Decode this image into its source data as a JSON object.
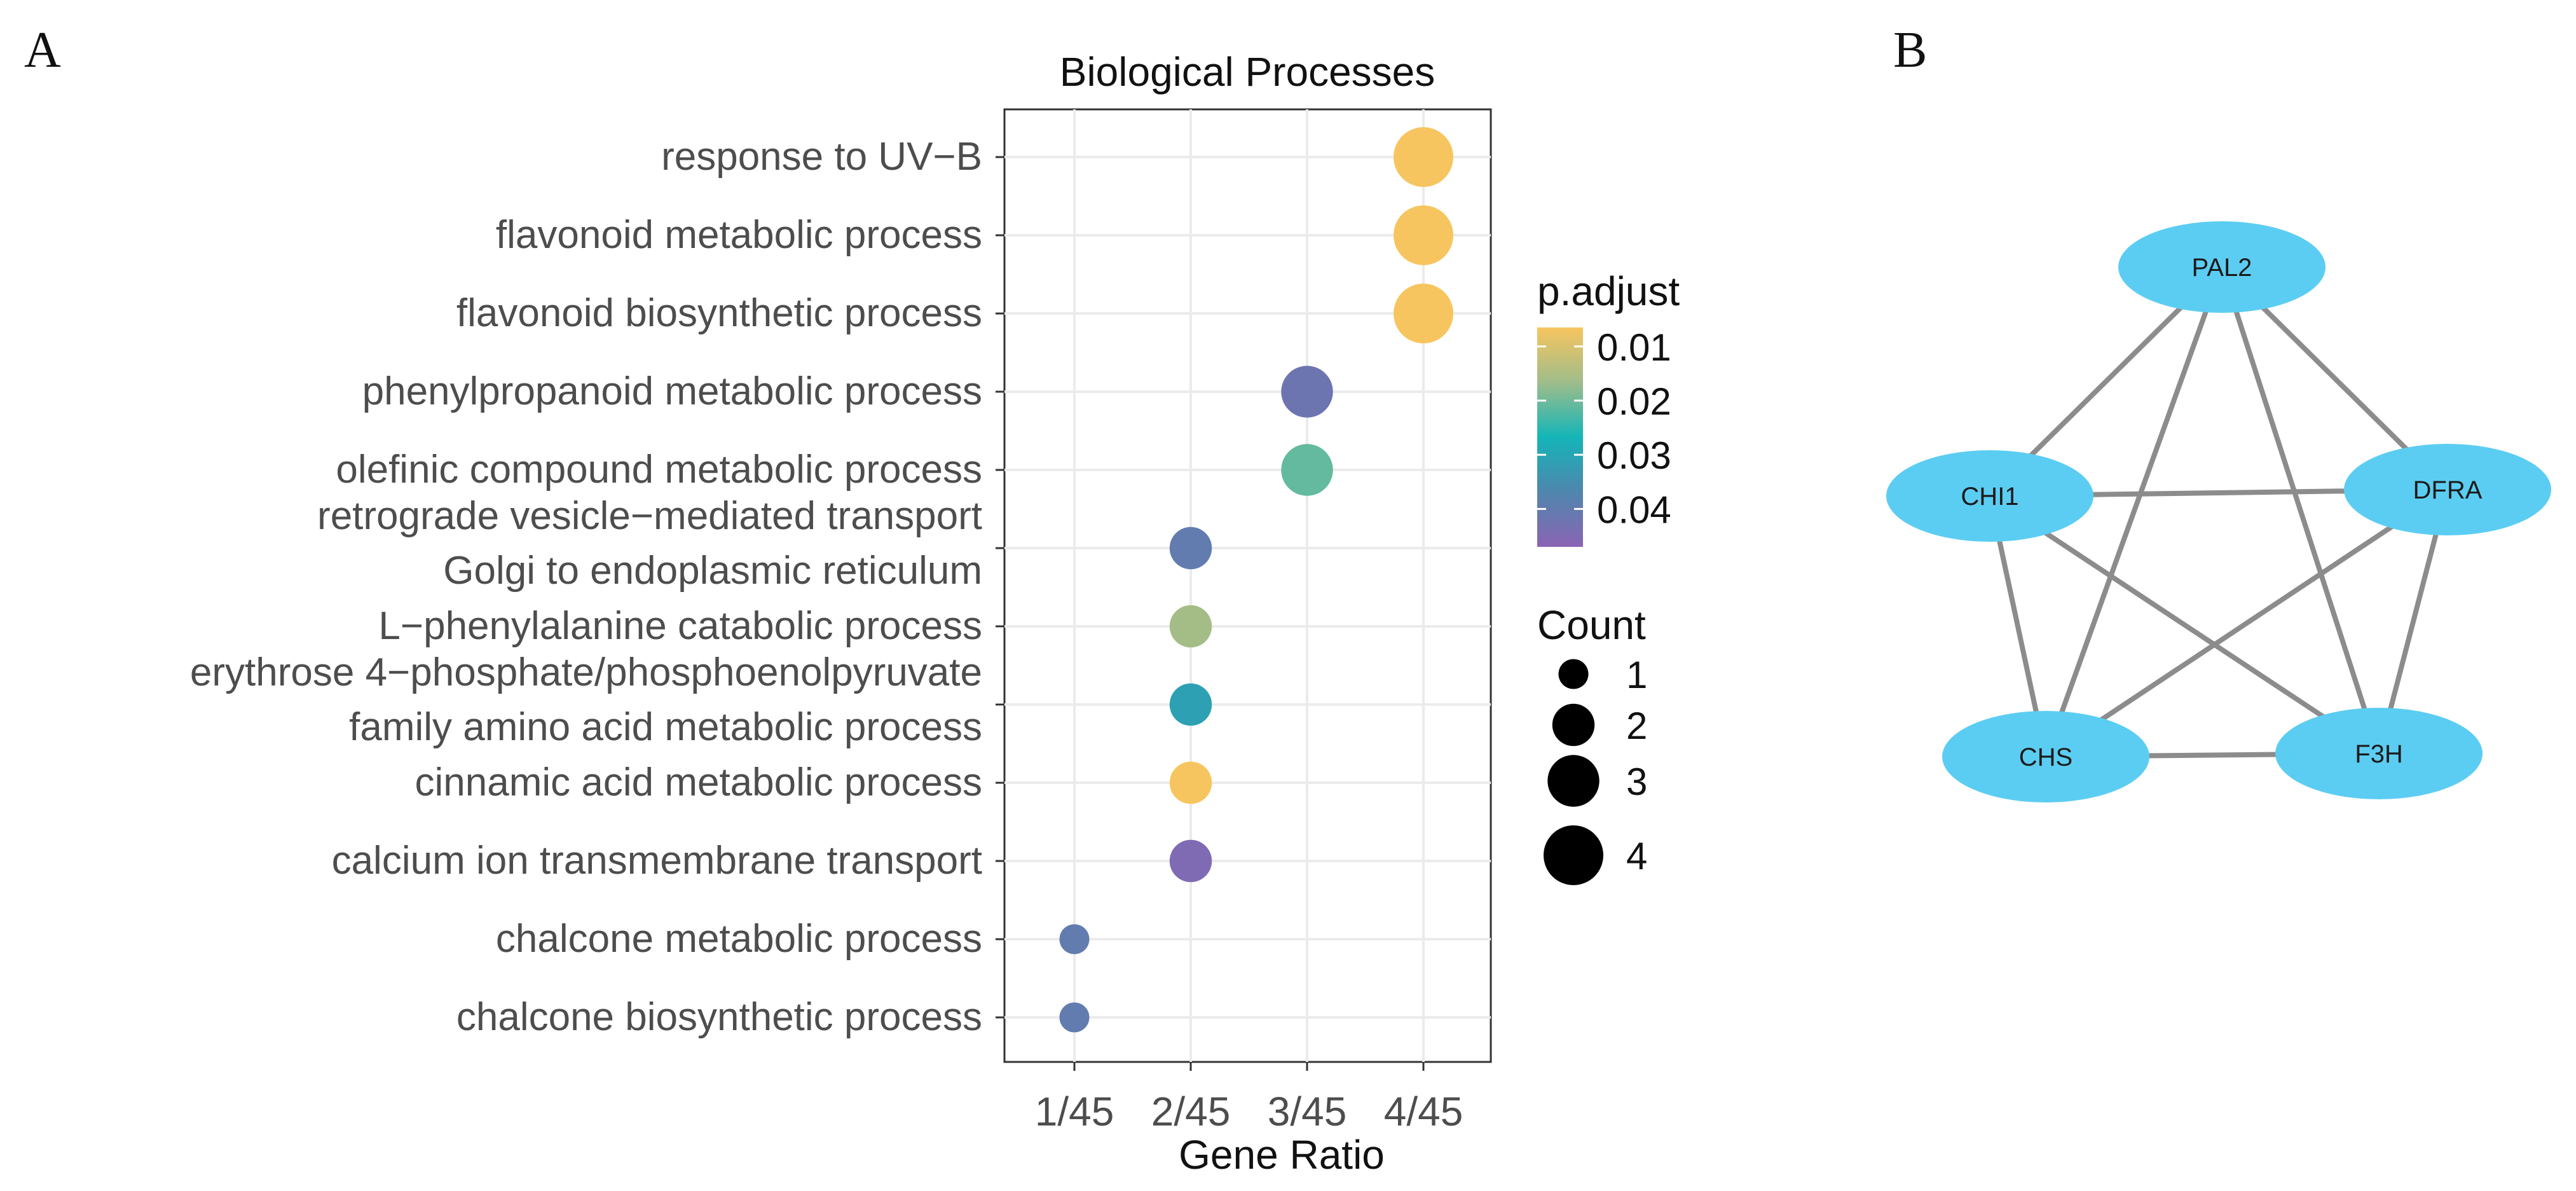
{
  "figure": {
    "panel_a_label": "A",
    "panel_b_label": "B"
  },
  "chart_data": {
    "type": "scatter",
    "title": "Biological Processes",
    "xlabel": "Gene Ratio",
    "ylabel": "",
    "x_categories": [
      "1/45",
      "2/45",
      "3/45",
      "4/45"
    ],
    "terms": [
      {
        "lines": [
          "response to UV−B"
        ],
        "ratio": "4/45",
        "count": 4,
        "p_adjust": 0.0065
      },
      {
        "lines": [
          "flavonoid metabolic process"
        ],
        "ratio": "4/45",
        "count": 4,
        "p_adjust": 0.0065
      },
      {
        "lines": [
          "flavonoid biosynthetic process"
        ],
        "ratio": "4/45",
        "count": 4,
        "p_adjust": 0.0065
      },
      {
        "lines": [
          "phenylpropanoid metabolic process"
        ],
        "ratio": "3/45",
        "count": 3,
        "p_adjust": 0.042
      },
      {
        "lines": [
          "olefinic compound metabolic process"
        ],
        "ratio": "3/45",
        "count": 3,
        "p_adjust": 0.021
      },
      {
        "lines": [
          "retrograde vesicle−mediated transport",
          "Golgi to endoplasmic reticulum"
        ],
        "ratio": "2/45",
        "count": 2,
        "p_adjust": 0.04
      },
      {
        "lines": [
          "L−phenylalanine catabolic process"
        ],
        "ratio": "2/45",
        "count": 2,
        "p_adjust": 0.016
      },
      {
        "lines": [
          "erythrose 4−phosphate/phosphoenolpyruvate",
          "family amino acid metabolic process"
        ],
        "ratio": "2/45",
        "count": 2,
        "p_adjust": 0.031
      },
      {
        "lines": [
          "cinnamic acid metabolic process"
        ],
        "ratio": "2/45",
        "count": 2,
        "p_adjust": 0.0065
      },
      {
        "lines": [
          "calcium ion transmembrane transport"
        ],
        "ratio": "2/45",
        "count": 2,
        "p_adjust": 0.045
      },
      {
        "lines": [
          "chalcone metabolic process"
        ],
        "ratio": "1/45",
        "count": 1,
        "p_adjust": 0.04
      },
      {
        "lines": [
          "chalcone biosynthetic process"
        ],
        "ratio": "1/45",
        "count": 1,
        "p_adjust": 0.04
      }
    ],
    "color_legend": {
      "title": "p.adjust",
      "ticks": [
        {
          "label": "0.01",
          "value": 0.01
        },
        {
          "label": "0.02",
          "value": 0.02
        },
        {
          "label": "0.03",
          "value": 0.03
        },
        {
          "label": "0.04",
          "value": 0.04
        }
      ],
      "range": [
        0.0065,
        0.047
      ],
      "color_stops": [
        "#f7c55f",
        "#9fbd8a",
        "#14b5b8",
        "#4f86ad",
        "#8b64b4"
      ]
    },
    "size_legend": {
      "title": "Count",
      "entries": [
        {
          "label": "1",
          "value": 1
        },
        {
          "label": "2",
          "value": 2
        },
        {
          "label": "3",
          "value": 3
        },
        {
          "label": "4",
          "value": 4
        }
      ]
    },
    "grid": true,
    "background": "#ffffff",
    "grid_color": "#ebebeb"
  },
  "network": {
    "node_color": "#5ccdf2",
    "edge_color": "#8c8c8c",
    "nodes": [
      {
        "id": "PAL2",
        "label": "PAL2"
      },
      {
        "id": "CHI1",
        "label": "CHI1"
      },
      {
        "id": "DFRA",
        "label": "DFRA"
      },
      {
        "id": "CHS",
        "label": "CHS"
      },
      {
        "id": "F3H",
        "label": "F3H"
      }
    ],
    "edges": [
      [
        "PAL2",
        "CHI1"
      ],
      [
        "PAL2",
        "DFRA"
      ],
      [
        "PAL2",
        "CHS"
      ],
      [
        "PAL2",
        "F3H"
      ],
      [
        "CHI1",
        "DFRA"
      ],
      [
        "CHI1",
        "CHS"
      ],
      [
        "CHI1",
        "F3H"
      ],
      [
        "DFRA",
        "CHS"
      ],
      [
        "DFRA",
        "F3H"
      ],
      [
        "CHS",
        "F3H"
      ]
    ]
  }
}
